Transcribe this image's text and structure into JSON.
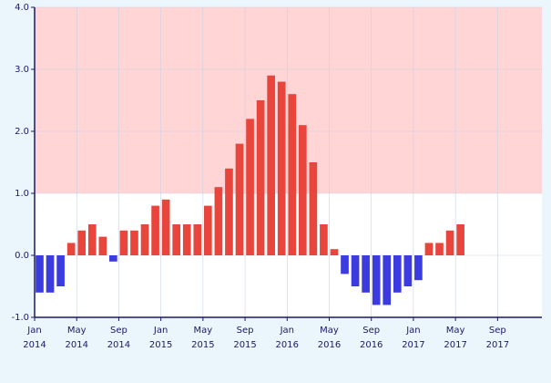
{
  "chart_data": {
    "type": "bar",
    "x": [
      "2014-01",
      "2014-02",
      "2014-03",
      "2014-04",
      "2014-05",
      "2014-06",
      "2014-07",
      "2014-08",
      "2014-09",
      "2014-10",
      "2014-11",
      "2014-12",
      "2015-01",
      "2015-02",
      "2015-03",
      "2015-04",
      "2015-05",
      "2015-06",
      "2015-07",
      "2015-08",
      "2015-09",
      "2015-10",
      "2015-11",
      "2015-12",
      "2016-01",
      "2016-02",
      "2016-03",
      "2016-04",
      "2016-05",
      "2016-06",
      "2016-07",
      "2016-08",
      "2016-09",
      "2016-10",
      "2016-11",
      "2016-12",
      "2017-01",
      "2017-02",
      "2017-03",
      "2017-04",
      "2017-05"
    ],
    "values": [
      -0.6,
      -0.6,
      -0.5,
      0.2,
      0.4,
      0.5,
      0.3,
      -0.1,
      0.4,
      0.4,
      0.5,
      0.8,
      0.9,
      0.5,
      0.5,
      0.5,
      0.8,
      1.1,
      1.4,
      1.8,
      2.2,
      2.5,
      2.9,
      2.8,
      2.6,
      2.1,
      1.5,
      0.5,
      0.1,
      -0.3,
      -0.5,
      -0.6,
      -0.8,
      -0.8,
      -0.6,
      -0.5,
      -0.4,
      0.2,
      0.2,
      0.4,
      0.5
    ],
    "positive_color": "#e8453c",
    "negative_color": "#3b3bdf",
    "band": [
      1,
      4
    ],
    "band_color": "#ffd5d5",
    "xlim": [
      "2014-01",
      "2017-12"
    ],
    "xticks": [
      {
        "value": "2014-01",
        "label": "Jan 2014"
      },
      {
        "value": "2014-05",
        "label": "May 2014"
      },
      {
        "value": "2014-09",
        "label": "Sep 2014"
      },
      {
        "value": "2015-01",
        "label": "Jan 2015"
      },
      {
        "value": "2015-05",
        "label": "May 2015"
      },
      {
        "value": "2015-09",
        "label": "Sep 2015"
      },
      {
        "value": "2016-01",
        "label": "Jan 2016"
      },
      {
        "value": "2016-05",
        "label": "May 2016"
      },
      {
        "value": "2016-09",
        "label": "Sep 2016"
      },
      {
        "value": "2017-01",
        "label": "Jan 2017"
      },
      {
        "value": "2017-05",
        "label": "May 2017"
      },
      {
        "value": "2017-09",
        "label": "Sep 2017"
      }
    ],
    "ylim": [
      -1,
      4
    ],
    "yticks": [
      {
        "value": -1,
        "label": "-1.0"
      },
      {
        "value": 0,
        "label": "0.0"
      },
      {
        "value": 1,
        "label": "1.0"
      },
      {
        "value": 2,
        "label": "2.0"
      },
      {
        "value": 3,
        "label": "3.0"
      },
      {
        "value": 4,
        "label": "4.0"
      }
    ],
    "grid": true
  }
}
